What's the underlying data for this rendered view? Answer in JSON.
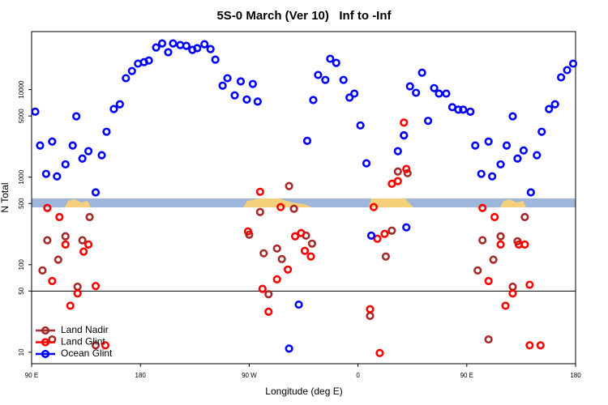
{
  "chart_data": {
    "type": "scatter",
    "title": "5S-0 March (Ver 10)   Inf to -Inf",
    "x_label": "Longitude (deg E)",
    "y_label": "N Total",
    "ylog": true,
    "legend": "bottom left",
    "hline": 50,
    "xlim": [
      90,
      540
    ],
    "xticks": [
      {
        "value": 90,
        "label": "90 E"
      },
      180,
      {
        "value": 270,
        "label": "90 W"
      },
      {
        "value": 360,
        "label": "0"
      },
      {
        "value": 450,
        "label": "90 E"
      },
      {
        "value": 540,
        "label": "180"
      }
    ],
    "ylim": [
      7.4,
      46000
    ],
    "yticks": [
      10,
      50,
      100,
      500,
      1000,
      5000,
      10000
    ],
    "series": [
      {
        "name": "Land Nadir",
        "color": "#a52a2a",
        "x": [
          99,
          103,
          107,
          112,
          118,
          128,
          132,
          138,
          143,
          270,
          279,
          282,
          286,
          293,
          297,
          303,
          307,
          317,
          322,
          370,
          383,
          388,
          393,
          398,
          401,
          459,
          463,
          468,
          472,
          478,
          488,
          492,
          498
        ],
        "values": [
          86,
          190,
          14,
          114,
          211,
          56,
          190,
          350,
          12,
          220,
          400,
          135,
          46,
          153,
          116,
          790,
          435,
          215,
          174,
          26,
          124,
          245,
          1160,
          3000,
          1110,
          86,
          190,
          14,
          114,
          211,
          56,
          185,
          350
        ]
      },
      {
        "name": "Land Glint",
        "color": "#ff0000",
        "x": [
          103,
          107,
          113,
          118,
          122,
          128,
          133,
          137,
          143,
          151,
          269,
          279,
          281,
          286,
          293,
          296,
          302,
          308,
          313,
          316,
          321,
          370,
          373,
          376,
          378,
          382,
          388,
          393,
          398,
          400,
          463,
          468,
          473,
          478,
          482,
          488,
          493,
          498,
          502,
          502,
          511
        ],
        "values": [
          445,
          65,
          350,
          170,
          34,
          47,
          141,
          170,
          57,
          12,
          240,
          680,
          53,
          29,
          68,
          455,
          88,
          211,
          230,
          144,
          124,
          31,
          455,
          198,
          9.8,
          225,
          840,
          900,
          4200,
          1240,
          445,
          65,
          350,
          170,
          34,
          47,
          170,
          170,
          59,
          12,
          12
        ]
      },
      {
        "name": "Ocean Glint",
        "color": "#0000ff",
        "x": [
          93,
          97,
          102,
          107,
          111,
          118,
          124,
          127,
          132,
          137,
          143,
          148,
          152,
          158,
          163,
          168,
          173,
          178,
          183,
          187,
          193,
          198,
          203,
          207,
          213,
          218,
          223,
          227,
          233,
          238,
          242,
          248,
          252,
          258,
          263,
          268,
          273,
          277,
          303,
          311,
          318,
          323,
          327,
          333,
          337,
          342,
          348,
          353,
          357,
          362,
          367,
          371,
          393,
          398,
          400,
          403,
          408,
          413,
          418,
          423,
          427,
          433,
          438,
          443,
          447,
          453,
          457,
          462,
          468,
          471,
          478,
          483,
          488,
          492,
          497,
          503,
          508,
          512,
          518,
          523,
          528,
          533,
          538
        ],
        "values": [
          5600,
          2300,
          1090,
          2550,
          1020,
          1400,
          2300,
          4950,
          1630,
          1980,
          670,
          1780,
          3300,
          6000,
          6800,
          13500,
          16300,
          19800,
          20600,
          21500,
          30300,
          33700,
          26700,
          33700,
          32300,
          31600,
          28400,
          29700,
          33000,
          29000,
          22000,
          11100,
          13500,
          8600,
          12400,
          7700,
          11600,
          7300,
          11,
          35,
          2600,
          7600,
          14700,
          12900,
          22500,
          20200,
          12900,
          8100,
          9000,
          3900,
          1440,
          215,
          1980,
          3000,
          267,
          10900,
          9200,
          15600,
          4400,
          10400,
          9000,
          9000,
          6300,
          5900,
          5900,
          5600,
          2300,
          1090,
          2550,
          1020,
          1400,
          2300,
          4950,
          1630,
          2020,
          670,
          1780,
          3300,
          6000,
          6800,
          13800,
          16700,
          19800
        ]
      }
    ]
  }
}
